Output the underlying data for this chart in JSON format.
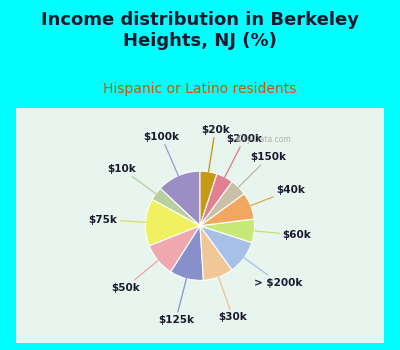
{
  "title": "Income distribution in Berkeley\nHeights, NJ (%)",
  "subtitle": "Hispanic or Latino residents",
  "border_color": "#00FFFF",
  "watermark": "City-Data.com",
  "slices": [
    {
      "label": "$100k",
      "value": 13,
      "color": "#9b8ec4",
      "lc": "#9999cc"
    },
    {
      "label": "$10k",
      "value": 4,
      "color": "#b8cfa0",
      "lc": "#b8cfa0"
    },
    {
      "label": "$75k",
      "value": 14,
      "color": "#f0f060",
      "lc": "#d8d870"
    },
    {
      "label": "$50k",
      "value": 10,
      "color": "#f0a8b0",
      "lc": "#f0a0b0"
    },
    {
      "label": "$125k",
      "value": 10,
      "color": "#8890cc",
      "lc": "#8890cc"
    },
    {
      "label": "$30k",
      "value": 9,
      "color": "#f0c898",
      "lc": "#e8c090"
    },
    {
      "label": "> $200k",
      "value": 10,
      "color": "#a8c0e8",
      "lc": "#a8c0e8"
    },
    {
      "label": "$60k",
      "value": 7,
      "color": "#c8e878",
      "lc": "#c0e070"
    },
    {
      "label": "$40k",
      "value": 8,
      "color": "#f0a860",
      "lc": "#e8a050"
    },
    {
      "label": "$150k",
      "value": 5,
      "color": "#c8c0a8",
      "lc": "#c0b898"
    },
    {
      "label": "$200k",
      "value": 5,
      "color": "#e08090",
      "lc": "#e07888"
    },
    {
      "label": "$20k",
      "value": 5,
      "color": "#c89818",
      "lc": "#c09010"
    }
  ],
  "title_fontsize": 13,
  "subtitle_fontsize": 10,
  "label_fontsize": 7.5
}
